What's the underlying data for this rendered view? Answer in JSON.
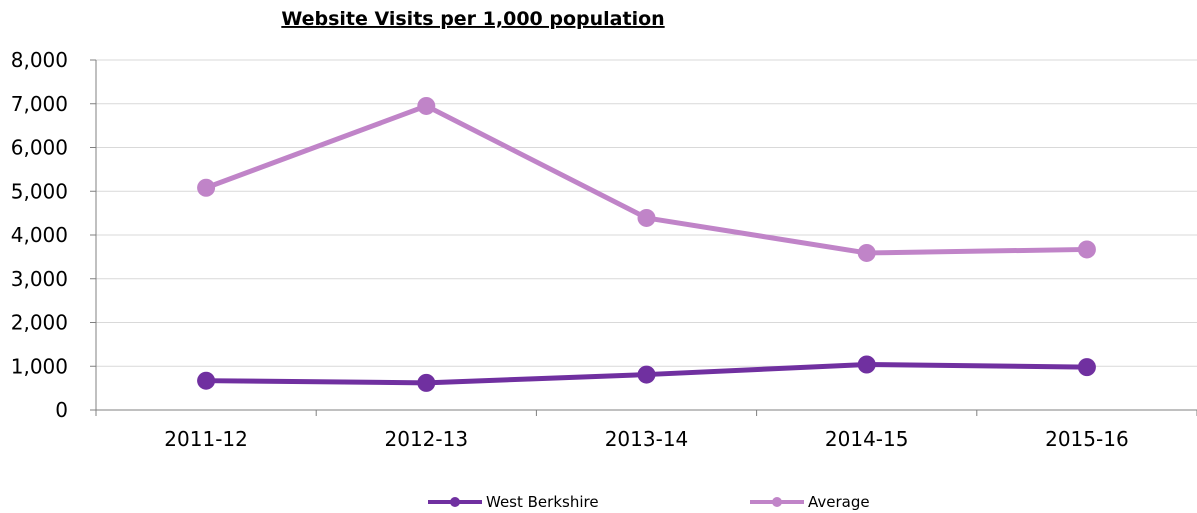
{
  "chart_data": {
    "type": "line",
    "title": "Website Visits per 1,000 population",
    "xlabel": "",
    "ylabel": "",
    "categories": [
      "2011-12",
      "2012-13",
      "2013-14",
      "2014-15",
      "2015-16"
    ],
    "ylim": [
      0,
      8000
    ],
    "yticks": [
      "0",
      "1,000",
      "2,000",
      "3,000",
      "4,000",
      "5,000",
      "6,000",
      "7,000",
      "8,000"
    ],
    "grid": true,
    "legend_position": "bottom",
    "series": [
      {
        "name": "West Berkshire",
        "color": "#7030a0",
        "values": [
          670,
          620,
          810,
          1040,
          980
        ]
      },
      {
        "name": "Average",
        "color": "#c084c8",
        "values": [
          5080,
          6950,
          4390,
          3590,
          3670
        ]
      }
    ]
  }
}
